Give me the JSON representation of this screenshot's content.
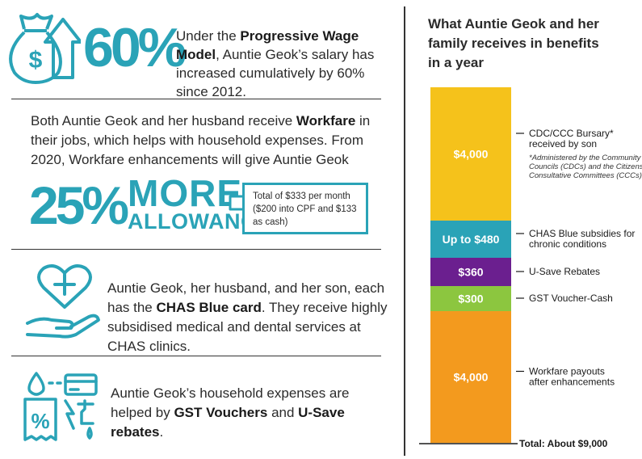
{
  "section1": {
    "big": "60%",
    "text_pre": "Under the ",
    "text_bold": "Progressive Wage Model",
    "text_post": ", Auntie Geok’s salary has increased cumulatively by 60% since 2012."
  },
  "section2": {
    "text_pre": "Both Auntie Geok and her husband receive ",
    "text_bold": "Workfare",
    "text_post": " in their jobs, which helps with household expenses. From 2020, Workfare enhancements will give Auntie Geok",
    "pct": "25%",
    "more": "MORE",
    "allowance": "ALLOWANCE",
    "box_text": "Total of $333 per month ($200 into CPF and $133 as cash)"
  },
  "section3": {
    "text_pre": "Auntie Geok, her husband, and her son, each has the ",
    "text_bold": "CHAS Blue card",
    "text_post": ". They receive highly subsidised medical and dental services at CHAS clinics."
  },
  "section4": {
    "text_pre": "Auntie Geok’s household expenses are helped by ",
    "text_bold1": "GST Vouchers",
    "text_mid": " and ",
    "text_bold2": "U-Save rebates",
    "text_post": "."
  },
  "icons": {
    "s1": "money-bag-up-arrow-icon",
    "s2": "arrow-right-icon",
    "s3": "hand-heart-cross-icon",
    "s4": "bills-utilities-icon"
  },
  "colors": {
    "accent": "#2aa3b7",
    "bursary": "#f5c21b",
    "chas": "#2aa3b7",
    "usave": "#6b1f8f",
    "gst": "#8cc63f",
    "workfare": "#f39a1e"
  },
  "chart_data": {
    "type": "bar",
    "stacked": true,
    "title": "What Auntie Geok and her family receives in benefits in a year",
    "segments": [
      {
        "label": "$4,000",
        "value": 4000,
        "name": "CDC/CCC Bursary* received by son",
        "note": "*Administered by the Community Development Councils (CDCs) and the Citizens’ Consultative Committees (CCCs).",
        "color": "#f5c21b"
      },
      {
        "label": "Up to $480",
        "value": 480,
        "name": "CHAS Blue subsidies for chronic conditions",
        "note": "",
        "color": "#2aa3b7"
      },
      {
        "label": "$360",
        "value": 360,
        "name": "U-Save Rebates",
        "note": "",
        "color": "#6b1f8f"
      },
      {
        "label": "$300",
        "value": 300,
        "name": "GST Voucher-Cash",
        "note": "",
        "color": "#8cc63f"
      },
      {
        "label": "$4,000",
        "value": 4000,
        "name": "Workfare payouts after enhancements",
        "note": "",
        "color": "#f39a1e"
      }
    ],
    "total_label": "Total: About $9,000"
  }
}
